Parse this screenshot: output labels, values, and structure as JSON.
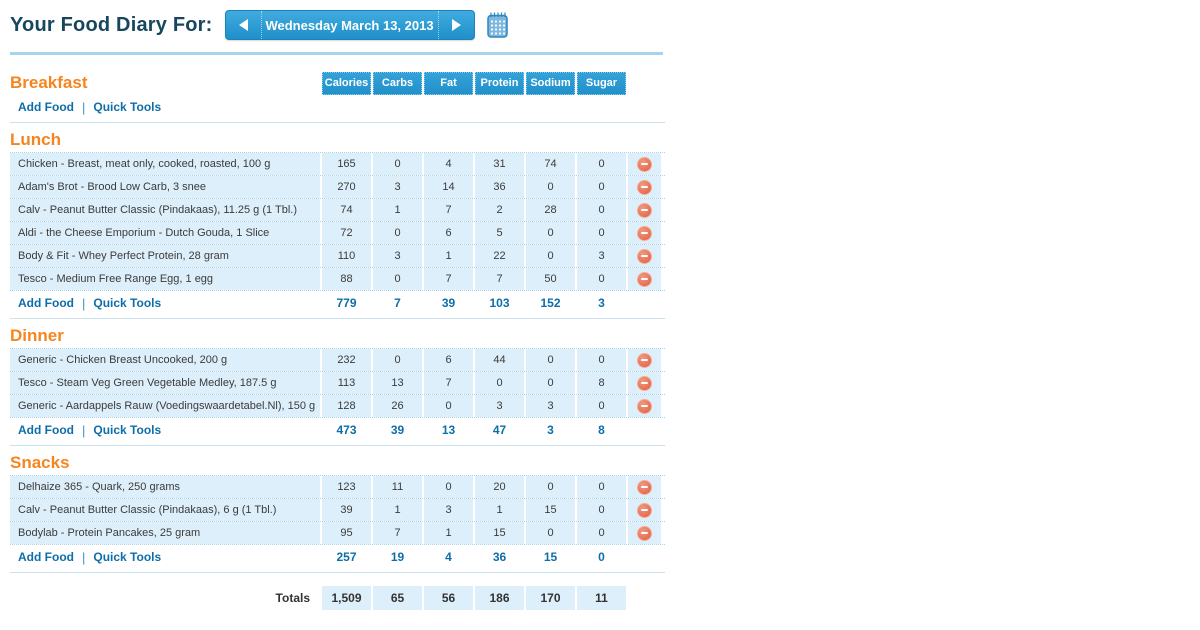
{
  "page_title": "Your Food Diary For:",
  "date_navigation": {
    "current_date": "Wednesday March 13, 2013",
    "prev_icon": "left-arrow",
    "next_icon": "right-arrow",
    "calendar_icon": "calendar"
  },
  "nutrient_columns": [
    "Calories",
    "Carbs",
    "Fat",
    "Protein",
    "Sodium",
    "Sugar"
  ],
  "section_links": {
    "add_food": "Add Food",
    "separator": "|",
    "quick_tools": "Quick Tools"
  },
  "sections": [
    {
      "name": "Breakfast",
      "show_column_headers": true,
      "rows": [],
      "totals": null
    },
    {
      "name": "Lunch",
      "show_column_headers": false,
      "rows": [
        {
          "food": "Chicken - Breast, meat only, cooked, roasted, 100 g",
          "values": [
            "165",
            "0",
            "4",
            "31",
            "74",
            "0"
          ]
        },
        {
          "food": "Adam's Brot - Brood Low Carb, 3 snee",
          "values": [
            "270",
            "3",
            "14",
            "36",
            "0",
            "0"
          ]
        },
        {
          "food": "Calv - Peanut Butter Classic (Pindakaas), 11.25 g (1 Tbl.)",
          "values": [
            "74",
            "1",
            "7",
            "2",
            "28",
            "0"
          ]
        },
        {
          "food": "Aldi - the Cheese Emporium - Dutch Gouda, 1 Slice",
          "values": [
            "72",
            "0",
            "6",
            "5",
            "0",
            "0"
          ]
        },
        {
          "food": "Body & Fit - Whey Perfect Protein, 28 gram",
          "values": [
            "110",
            "3",
            "1",
            "22",
            "0",
            "3"
          ]
        },
        {
          "food": "Tesco - Medium Free Range Egg, 1 egg",
          "values": [
            "88",
            "0",
            "7",
            "7",
            "50",
            "0"
          ]
        }
      ],
      "totals": [
        "779",
        "7",
        "39",
        "103",
        "152",
        "3"
      ]
    },
    {
      "name": "Dinner",
      "show_column_headers": false,
      "rows": [
        {
          "food": "Generic - Chicken Breast Uncooked, 200 g",
          "values": [
            "232",
            "0",
            "6",
            "44",
            "0",
            "0"
          ]
        },
        {
          "food": "Tesco - Steam Veg Green Vegetable Medley, 187.5 g",
          "values": [
            "113",
            "13",
            "7",
            "0",
            "0",
            "8"
          ]
        },
        {
          "food": "Generic - Aardappels Rauw (Voedingswaardetabel.Nl), 150 g",
          "values": [
            "128",
            "26",
            "0",
            "3",
            "3",
            "0"
          ]
        }
      ],
      "totals": [
        "473",
        "39",
        "13",
        "47",
        "3",
        "8"
      ]
    },
    {
      "name": "Snacks",
      "show_column_headers": false,
      "rows": [
        {
          "food": "Delhaize 365 - Quark, 250 grams",
          "values": [
            "123",
            "11",
            "0",
            "20",
            "0",
            "0"
          ]
        },
        {
          "food": "Calv - Peanut Butter Classic (Pindakaas), 6 g (1 Tbl.)",
          "values": [
            "39",
            "1",
            "3",
            "1",
            "15",
            "0"
          ]
        },
        {
          "food": "Bodylab - Protein Pancakes, 25 gram",
          "values": [
            "95",
            "7",
            "1",
            "15",
            "0",
            "0"
          ]
        }
      ],
      "totals": [
        "257",
        "19",
        "4",
        "36",
        "15",
        "0"
      ]
    }
  ],
  "grand_totals": {
    "label": "Totals",
    "values": [
      "1,509",
      "65",
      "56",
      "186",
      "170",
      "11"
    ]
  },
  "colors": {
    "navy": "#17465f",
    "orange": "#f6851f",
    "link_blue": "#0d6ea9",
    "accent_blue": "#2d9bd3",
    "row_bg": "#ddeffa",
    "delete_red": "#e35b40"
  }
}
